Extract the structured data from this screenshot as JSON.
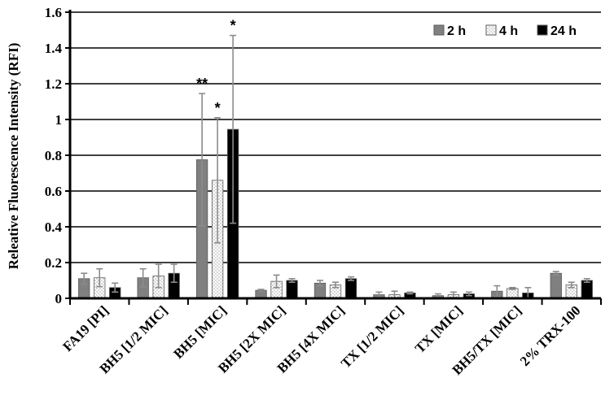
{
  "chart_data": {
    "type": "bar",
    "title": "",
    "xlabel": "",
    "ylabel": "Releative Fluorescence Intensity (RFI)",
    "ylim": [
      0,
      1.6
    ],
    "yticks": [
      "0",
      "0.2",
      "0.4",
      "0.6",
      "0.8",
      "1",
      "1.2",
      "1.4",
      "1.6"
    ],
    "grid": true,
    "legend_position": "top-right",
    "categories": [
      "FA19  [PI]",
      "BH5 [1/2 MIC]",
      "BH5 [MIC]",
      "BH5 [2X MIC]",
      "BH5 [4X MIC]",
      "TX [1/2 MIC]",
      "TX [MIC]",
      "BH5/TX [MIC]",
      "2% TRX-100"
    ],
    "series": [
      {
        "name": "2 h",
        "color": "#808080",
        "pattern": "solid-gray",
        "values": [
          0.11,
          0.115,
          0.775,
          0.045,
          0.085,
          0.02,
          0.015,
          0.04,
          0.14
        ],
        "errors": [
          0.03,
          0.05,
          0.37,
          0.005,
          0.015,
          0.015,
          0.01,
          0.03,
          0.01
        ]
      },
      {
        "name": "4 h",
        "color": "#ffffff",
        "pattern": "dotted-white",
        "values": [
          0.115,
          0.125,
          0.66,
          0.095,
          0.075,
          0.02,
          0.02,
          0.055,
          0.075
        ],
        "errors": [
          0.05,
          0.065,
          0.35,
          0.035,
          0.015,
          0.02,
          0.015,
          0.005,
          0.015
        ]
      },
      {
        "name": "24 h",
        "color": "#000000",
        "pattern": "solid-black",
        "values": [
          0.06,
          0.14,
          0.945,
          0.1,
          0.11,
          0.03,
          0.025,
          0.03,
          0.1
        ],
        "errors": [
          0.025,
          0.05,
          0.525,
          0.01,
          0.01,
          0.005,
          0.01,
          0.03,
          0.01
        ]
      }
    ],
    "annotations": [
      {
        "category": "BH5 [MIC]",
        "series": "2 h",
        "text": "**"
      },
      {
        "category": "BH5 [MIC]",
        "series": "4 h",
        "text": "*"
      },
      {
        "category": "BH5 [MIC]",
        "series": "24 h",
        "text": "*"
      }
    ]
  }
}
